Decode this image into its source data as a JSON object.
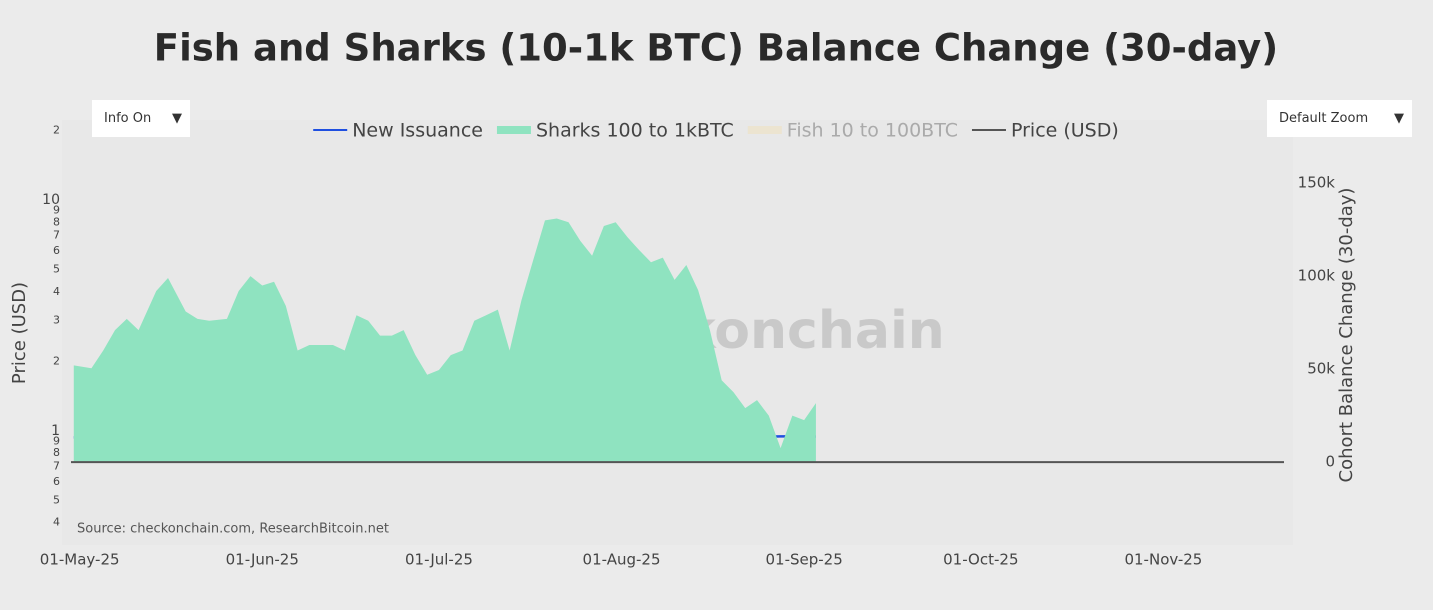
{
  "controls": {
    "info": "Info On",
    "zoom": "Default Zoom",
    "arrow": "▼"
  },
  "chart_data": {
    "type": "area",
    "title": "Fish and Sharks (10-1k BTC) Balance Change (30-day)",
    "watermark": "_checkonchain",
    "source": "Source: checkonchain.com, ResearchBitcoin.net",
    "y_label": "Price (USD)",
    "y2_label": "Cohort Balance Change (30-day)",
    "ylog": true,
    "ylim": [
      0.32,
      22.2
    ],
    "yticks": [
      {
        "value": 0.4,
        "label": "4"
      },
      {
        "value": 0.5,
        "label": "5"
      },
      {
        "value": 0.6,
        "label": "6"
      },
      {
        "value": 0.7,
        "label": "7"
      },
      {
        "value": 0.8,
        "label": "8"
      },
      {
        "value": 0.9,
        "label": "9"
      },
      1,
      2,
      3,
      4,
      5,
      6,
      7,
      8,
      9,
      10,
      {
        "value": 20,
        "label": "2"
      }
    ],
    "y2lim": [
      -44600,
      184000
    ],
    "y2ticks": [
      0,
      {
        "value": 50000,
        "label": "50k"
      },
      {
        "value": 100000,
        "label": "100k"
      },
      {
        "value": 150000,
        "label": "150k"
      }
    ],
    "xlim": [
      "2025-04-28",
      "2025-11-23"
    ],
    "xticks": [
      {
        "value": "2025-05-01",
        "label": "01-May-25"
      },
      {
        "value": "2025-06-01",
        "label": "01-Jun-25"
      },
      {
        "value": "2025-07-01",
        "label": "01-Jul-25"
      },
      {
        "value": "2025-08-01",
        "label": "01-Aug-25"
      },
      {
        "value": "2025-09-01",
        "label": "01-Sep-25"
      },
      {
        "value": "2025-10-01",
        "label": "01-Oct-25"
      },
      {
        "value": "2025-11-01",
        "label": "01-Nov-25"
      }
    ],
    "x": [
      "2025-04-30",
      "2025-05-03",
      "2025-05-05",
      "2025-05-07",
      "2025-05-09",
      "2025-05-11",
      "2025-05-14",
      "2025-05-16",
      "2025-05-19",
      "2025-05-21",
      "2025-05-23",
      "2025-05-26",
      "2025-05-28",
      "2025-05-30",
      "2025-06-01",
      "2025-06-03",
      "2025-06-05",
      "2025-06-07",
      "2025-06-09",
      "2025-06-11",
      "2025-06-13",
      "2025-06-15",
      "2025-06-17",
      "2025-06-19",
      "2025-06-21",
      "2025-06-23",
      "2025-06-25",
      "2025-06-27",
      "2025-06-29",
      "2025-07-01",
      "2025-07-03",
      "2025-07-05",
      "2025-07-07",
      "2025-07-09",
      "2025-07-11",
      "2025-07-13",
      "2025-07-15",
      "2025-07-17",
      "2025-07-19",
      "2025-07-21",
      "2025-07-23",
      "2025-07-25",
      "2025-07-27",
      "2025-07-29",
      "2025-07-31",
      "2025-08-02",
      "2025-08-04",
      "2025-08-06",
      "2025-08-08",
      "2025-08-10",
      "2025-08-12",
      "2025-08-14",
      "2025-08-16",
      "2025-08-18",
      "2025-08-20",
      "2025-08-22",
      "2025-08-24",
      "2025-08-26",
      "2025-08-28",
      "2025-08-30",
      "2025-09-01",
      "2025-09-03"
    ],
    "series": [
      {
        "name": "New Issuance",
        "color": "#1f4fe0",
        "kind": "line",
        "axis": "y2",
        "values": [
          13300,
          13300,
          13300,
          13400,
          13400,
          13400,
          13500,
          13500,
          13600,
          13600,
          13700,
          13700,
          13700,
          13700,
          13700,
          13600,
          13600,
          13500,
          13500,
          13400,
          13400,
          13300,
          13300,
          13200,
          13100,
          13100,
          13000,
          13000,
          13000,
          13000,
          13000,
          13000,
          13100,
          13100,
          13200,
          13200,
          13300,
          13300,
          13400,
          13400,
          13500,
          13700,
          13800,
          13700,
          13700,
          13700,
          13700,
          13700,
          13700,
          13700,
          13700,
          13700,
          13700,
          13700,
          13700,
          13700,
          13700,
          13700,
          13800,
          13800,
          13800,
          13700
        ]
      },
      {
        "name": "Sharks 100 to 1kBTC",
        "color": "#8fe3c0",
        "kind": "area",
        "axis": "y2",
        "values": [
          52000,
          50500,
          60000,
          71000,
          77000,
          71000,
          92000,
          99000,
          81000,
          77000,
          76000,
          77000,
          92000,
          100000,
          95000,
          97000,
          84000,
          60000,
          63000,
          63000,
          63000,
          60000,
          79000,
          76000,
          68000,
          68000,
          71000,
          57500,
          47000,
          49500,
          57500,
          60000,
          76000,
          79000,
          82000,
          60000,
          87000,
          108600,
          130000,
          131000,
          129000,
          119000,
          111000,
          127000,
          129000,
          121000,
          114000,
          107500,
          110000,
          98000,
          106000,
          92500,
          71000,
          44000,
          37600,
          29000,
          33300,
          25000,
          7500,
          25000,
          22600,
          31700
        ]
      },
      {
        "name": "Fish 10 to 100BTC",
        "color": "#f0dfb8",
        "kind": "area",
        "axis": "y2",
        "visible": false,
        "values": [
          null,
          null,
          null,
          null,
          null,
          null,
          null,
          null,
          null,
          null,
          null,
          null,
          null,
          null,
          null,
          null,
          null,
          null,
          null,
          null,
          null,
          null,
          null,
          null,
          null,
          null,
          null,
          null,
          null,
          null,
          null,
          null,
          null,
          null,
          null,
          null,
          null,
          null,
          null,
          null,
          null,
          null,
          null,
          null,
          null,
          null,
          null,
          null,
          null,
          null,
          null,
          null,
          null,
          null,
          null,
          null,
          null,
          null,
          null,
          null,
          null,
          null
        ]
      },
      {
        "name": "Price (USD)",
        "color": "#555555",
        "kind": "line",
        "axis": "y",
        "values": [
          null,
          null,
          null,
          null,
          null,
          null,
          null,
          null,
          null,
          null,
          null,
          null,
          null,
          null,
          null,
          null,
          null,
          null,
          null,
          null,
          null,
          null,
          null,
          null,
          null,
          null,
          null,
          null,
          null,
          null,
          null,
          null,
          null,
          null,
          null,
          null,
          null,
          null,
          null,
          null,
          null,
          null,
          null,
          null,
          null,
          null,
          null,
          null,
          null,
          null,
          null,
          null,
          null,
          null,
          null,
          null,
          null,
          null,
          null,
          null,
          null,
          null
        ]
      }
    ]
  }
}
